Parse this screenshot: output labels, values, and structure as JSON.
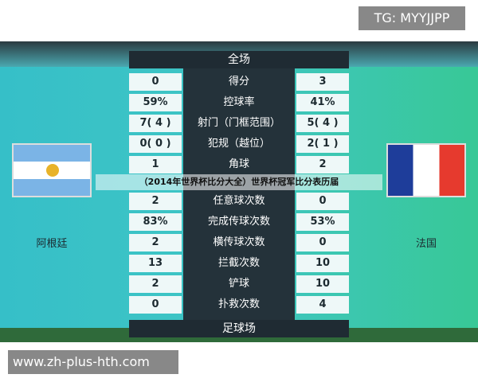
{
  "watermark_top": "TG: MYYJJPP",
  "watermark_bottom": "www.zh-plus-hth.com",
  "header": "全场",
  "footer": "足球场",
  "caption": "（2014年世界杯比分大全）世界杯冠军比分表历届",
  "teams": {
    "left": "阿根廷",
    "right": "法国"
  },
  "stats": [
    {
      "label": "得分",
      "left": "0",
      "right": "3"
    },
    {
      "label": "控球率",
      "left": "59%",
      "right": "41%"
    },
    {
      "label": "射门（门框范围）",
      "left": "7( 4 )",
      "right": "5( 4 )"
    },
    {
      "label": "犯规（越位）",
      "left": "0( 0 )",
      "right": "2( 1 )"
    },
    {
      "label": "角球",
      "left": "1",
      "right": "2"
    },
    {
      "label": "任意球次数",
      "left": "2",
      "right": "0"
    },
    {
      "label": "完成传球次数",
      "left": "83%",
      "right": "53%"
    },
    {
      "label": "横传球次数",
      "left": "2",
      "right": "0"
    },
    {
      "label": "拦截次数",
      "left": "13",
      "right": "10"
    },
    {
      "label": "铲球",
      "left": "2",
      "right": "10"
    },
    {
      "label": "扑救次数",
      "left": "0",
      "right": "4"
    }
  ]
}
